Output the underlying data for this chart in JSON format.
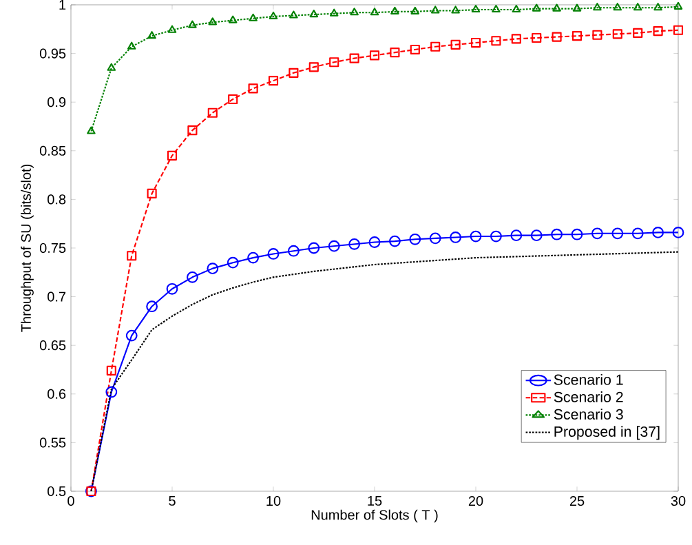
{
  "chart_data": {
    "type": "line",
    "xlabel": "Number of Slots ( T )",
    "ylabel": "Throughput of SU (bits/slot)",
    "x": [
      1,
      2,
      3,
      4,
      5,
      6,
      7,
      8,
      9,
      10,
      11,
      12,
      13,
      14,
      15,
      16,
      17,
      18,
      19,
      20,
      21,
      22,
      23,
      24,
      25,
      26,
      27,
      28,
      29,
      30
    ],
    "series": [
      {
        "name": "Scenario 1",
        "color": "#0000ff",
        "marker": "circle",
        "line_style": "solid",
        "values": [
          0.5,
          0.602,
          0.66,
          0.69,
          0.708,
          0.72,
          0.729,
          0.735,
          0.74,
          0.744,
          0.747,
          0.75,
          0.752,
          0.754,
          0.756,
          0.757,
          0.759,
          0.76,
          0.761,
          0.762,
          0.762,
          0.763,
          0.763,
          0.764,
          0.764,
          0.765,
          0.765,
          0.765,
          0.766,
          0.766
        ]
      },
      {
        "name": "Scenario 2",
        "color": "#ff0000",
        "marker": "square",
        "line_style": "dashed",
        "values": [
          0.5,
          0.624,
          0.742,
          0.806,
          0.845,
          0.871,
          0.889,
          0.903,
          0.914,
          0.922,
          0.93,
          0.936,
          0.941,
          0.945,
          0.948,
          0.951,
          0.954,
          0.957,
          0.959,
          0.961,
          0.963,
          0.965,
          0.966,
          0.967,
          0.968,
          0.969,
          0.97,
          0.971,
          0.973,
          0.974
        ]
      },
      {
        "name": "Scenario 3",
        "color": "#008000",
        "marker": "triangle",
        "line_style": "dotted",
        "values": [
          0.87,
          0.935,
          0.957,
          0.968,
          0.974,
          0.979,
          0.982,
          0.984,
          0.986,
          0.988,
          0.989,
          0.99,
          0.991,
          0.992,
          0.992,
          0.993,
          0.993,
          0.994,
          0.994,
          0.995,
          0.995,
          0.995,
          0.996,
          0.996,
          0.996,
          0.997,
          0.997,
          0.997,
          0.997,
          0.998
        ]
      },
      {
        "name": "Proposed in [37]",
        "color": "#000000",
        "marker": "none",
        "line_style": "dotted",
        "x": [
          1,
          2,
          3,
          4,
          5,
          6,
          7,
          8,
          9,
          10,
          12,
          15,
          20,
          25,
          30
        ],
        "values": [
          0.5,
          0.605,
          0.635,
          0.666,
          0.68,
          0.692,
          0.702,
          0.709,
          0.715,
          0.72,
          0.726,
          0.733,
          0.74,
          0.743,
          0.746
        ]
      }
    ],
    "xlim": [
      0,
      30
    ],
    "ylim": [
      0.5,
      1
    ],
    "xticks": [
      0,
      5,
      10,
      15,
      20,
      25,
      30
    ],
    "yticks": [
      0.5,
      0.55,
      0.6,
      0.65,
      0.7,
      0.75,
      0.8,
      0.85,
      0.9,
      0.95,
      1
    ],
    "grid": false,
    "legend": "bottom right"
  }
}
